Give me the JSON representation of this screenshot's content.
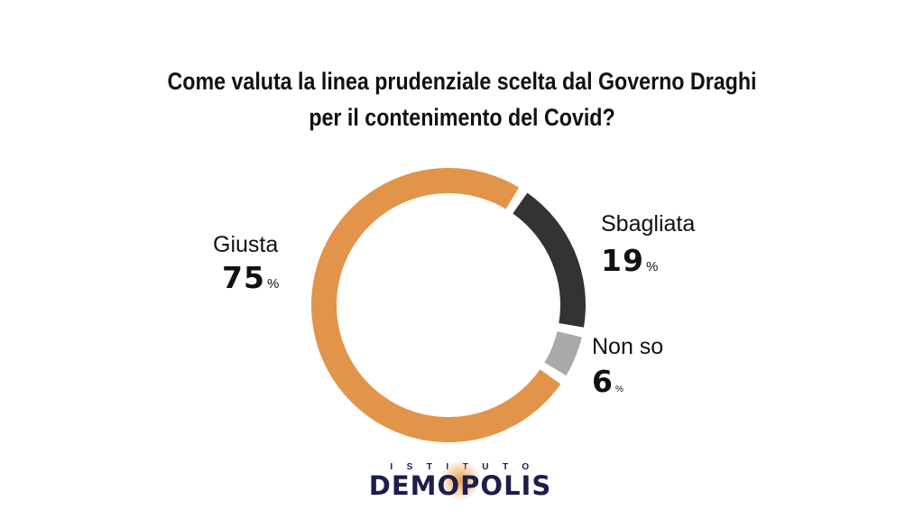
{
  "title": {
    "line1": "Come valuta la linea prudenziale scelta dal Governo Draghi",
    "line2": "per il contenimento del Covid?"
  },
  "chart_data": {
    "type": "pie",
    "donut": true,
    "title": "Come valuta la linea prudenziale scelta dal Governo Draghi per il contenimento del Covid?",
    "categories": [
      "Giusta",
      "Sbagliata",
      "Non so"
    ],
    "values": [
      75,
      19,
      6
    ],
    "value_labels": [
      "75",
      "19",
      "6"
    ],
    "unit": "%",
    "colors": [
      "#E2944A",
      "#333333",
      "#A9A9A9"
    ]
  },
  "logo": {
    "top": "ISTITUTO",
    "main": "DEMOPOLIS"
  }
}
